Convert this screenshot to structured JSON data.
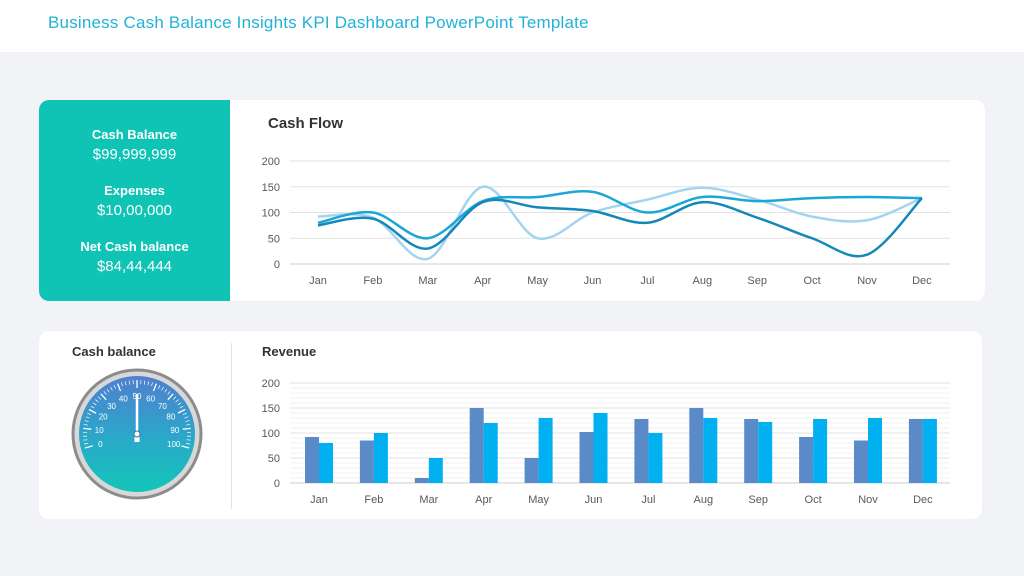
{
  "header": {
    "title": "Business Cash Balance Insights KPI Dashboard PowerPoint Template"
  },
  "kpis": [
    {
      "label": "Cash Balance",
      "value": "$99,999,999"
    },
    {
      "label": "Expenses",
      "value": "$10,00,000"
    },
    {
      "label": "Net Cash balance",
      "value": "$84,44,444"
    }
  ],
  "colors": {
    "accent": "#0fc4b5",
    "title": "#22b2d6"
  },
  "gauge": {
    "title": "Cash balance",
    "min": 0,
    "max": 100,
    "value": 50,
    "labels": [
      "0",
      "10",
      "20",
      "30",
      "40",
      "50",
      "60",
      "70",
      "80",
      "90",
      "100"
    ]
  },
  "chart_data": [
    {
      "type": "line",
      "title": "Cash Flow",
      "categories": [
        "Jan",
        "Feb",
        "Mar",
        "Apr",
        "May",
        "Jun",
        "Jul",
        "Aug",
        "Sep",
        "Oct",
        "Nov",
        "Dec"
      ],
      "ylim": [
        0,
        200
      ],
      "yticks": [
        "0",
        "50",
        "100",
        "150",
        "200"
      ],
      "grid": true,
      "series": [
        {
          "color": "#a3d4f0",
          "values": [
            92,
            90,
            10,
            150,
            50,
            100,
            125,
            148,
            125,
            92,
            85,
            128
          ]
        },
        {
          "color": "#1aa7d6",
          "values": [
            80,
            100,
            50,
            122,
            130,
            140,
            100,
            130,
            122,
            128,
            130,
            128
          ]
        },
        {
          "color": "#1488b8",
          "values": [
            75,
            88,
            30,
            120,
            110,
            103,
            80,
            120,
            90,
            50,
            18,
            128
          ]
        }
      ]
    },
    {
      "type": "bar",
      "title": "Revenue",
      "categories": [
        "Jan",
        "Feb",
        "Mar",
        "Apr",
        "May",
        "Jun",
        "Jul",
        "Aug",
        "Sep",
        "Oct",
        "Nov",
        "Dec"
      ],
      "ylim": [
        0,
        200
      ],
      "yticks": [
        "0",
        "50",
        "100",
        "150",
        "200"
      ],
      "grid": true,
      "series": [
        {
          "color": "#5b8ac9",
          "values": [
            92,
            85,
            10,
            150,
            50,
            102,
            128,
            150,
            128,
            92,
            85,
            128
          ]
        },
        {
          "color": "#00b0f0",
          "values": [
            80,
            100,
            50,
            120,
            130,
            140,
            100,
            130,
            122,
            128,
            130,
            128
          ]
        }
      ]
    }
  ]
}
